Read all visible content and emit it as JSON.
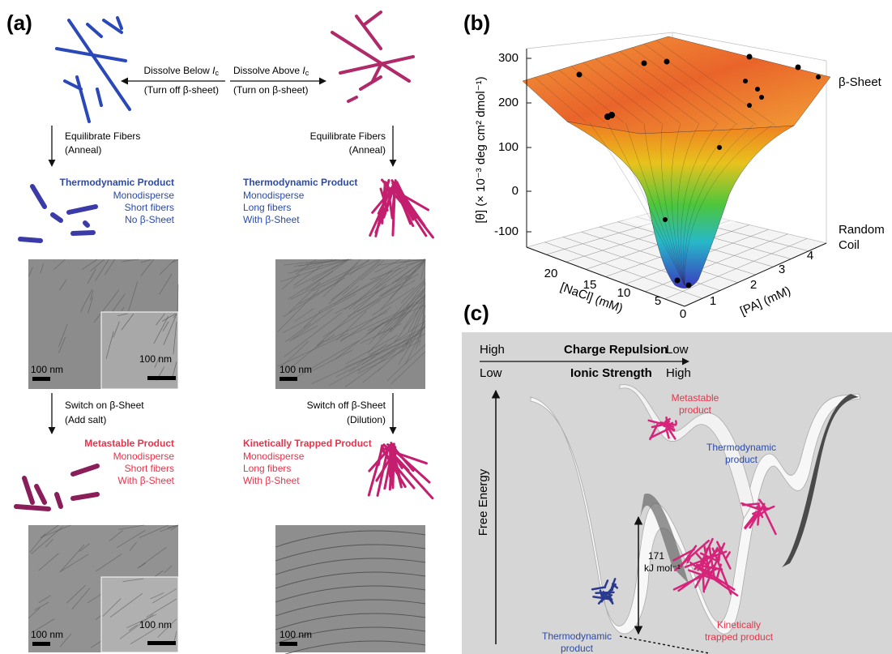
{
  "panel_a": {
    "label": "(a)",
    "dissolve_below": {
      "text": "Dissolve Below ",
      "var": "I",
      "sub": "c"
    },
    "turn_off": "(Turn off β-sheet)",
    "dissolve_above": {
      "text": "Dissolve Above ",
      "var": "I",
      "sub": "c"
    },
    "turn_on": "(Turn on β-sheet)",
    "equilibrate_left": [
      "Equilibrate Fibers",
      "(Anneal)"
    ],
    "equilibrate_right": [
      "Equilibrate Fibers",
      "(Anneal)"
    ],
    "thermo_short": [
      "Thermodynamic Product",
      "Monodisperse",
      "Short fibers",
      "No β-Sheet"
    ],
    "thermo_long": [
      "Thermodynamic Product",
      "Monodisperse",
      "Long fibers",
      "With β-Sheet"
    ],
    "switch_on": [
      "Switch on β-Sheet",
      "(Add salt)"
    ],
    "switch_off": [
      "Switch off β-Sheet",
      "(Dilution)"
    ],
    "metastable": [
      "Metastable Product",
      "Monodisperse",
      "Short fibers",
      "With β-Sheet"
    ],
    "kinetic": [
      "Kinetically Trapped Product",
      "Monodisperse",
      "Long fibers",
      "With β-Sheet"
    ],
    "scale_bars": [
      "100 nm",
      "100 nm",
      "100 nm",
      "100 nm",
      "100 nm",
      "100 nm"
    ]
  },
  "panel_b": {
    "label": "(b)",
    "z_label": "[θ] (× 10⁻³ deg cm² dmol⁻¹)",
    "z_ticks": [
      300,
      200,
      100,
      0,
      -100
    ],
    "x_label": "[NaCl] (mM)",
    "x_ticks": [
      20,
      15,
      10,
      5,
      0
    ],
    "y_label": "[PA] (mM)",
    "y_ticks": [
      1,
      2,
      3,
      4
    ],
    "beta_sheet": "β-Sheet",
    "random_coil": [
      "Random",
      "Coil"
    ]
  },
  "panel_c": {
    "label": "(c)",
    "top_row": [
      "High",
      "Charge Repulsion",
      "Low"
    ],
    "bottom_row": [
      "Low",
      "Ionic Strength",
      "High"
    ],
    "free_energy": "Free Energy",
    "energy": [
      "171",
      "kJ mol⁻¹"
    ],
    "metastable": [
      "Metastable",
      "product"
    ],
    "thermo_right": [
      "Thermodynamic",
      "product"
    ],
    "thermo_left": [
      "Thermodynamic",
      "product"
    ],
    "kinetic": [
      "Kinetically",
      "trapped product"
    ]
  }
}
